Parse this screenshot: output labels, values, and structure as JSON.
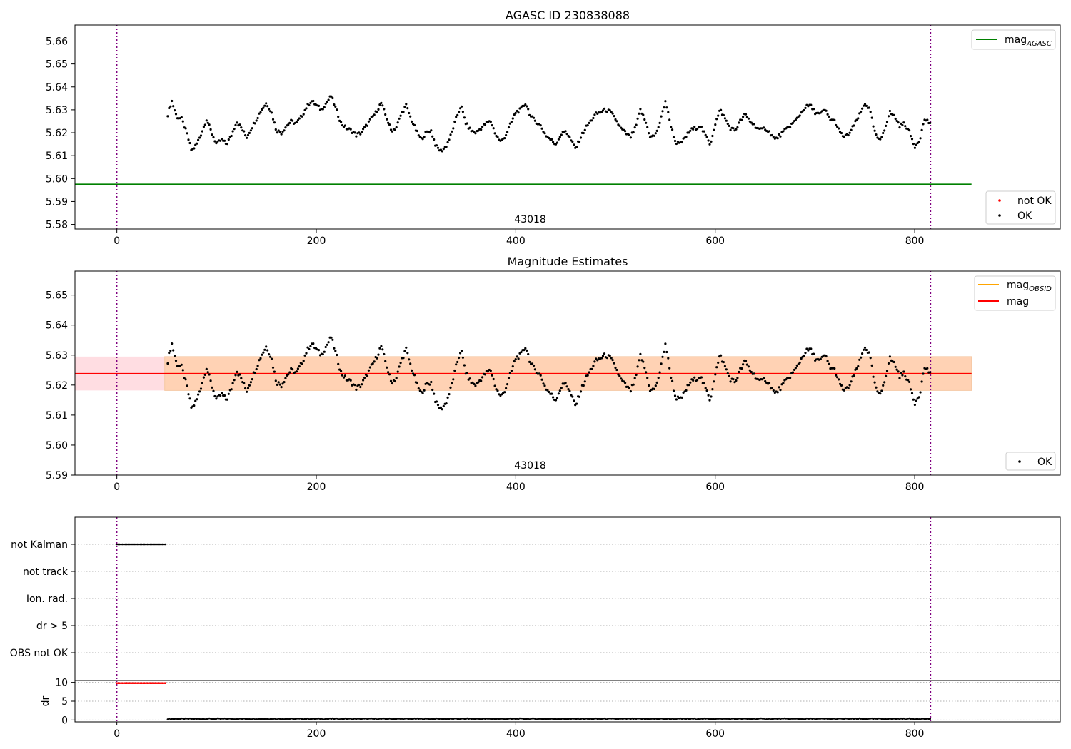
{
  "figure": {
    "panel1_title": "AGASC ID 230838088",
    "panel2_title": "Magnitude Estimates",
    "obsid_label": "43018"
  },
  "colors": {
    "ok": "#000000",
    "not_ok": "#ff0000",
    "mag_agasc": "#008000",
    "mag_obsid": "#ffa500",
    "mag": "#ff0000",
    "band_outer": "#ffdde2",
    "band_inner": "#ffd2b4",
    "obs_boundary": "#800080",
    "grid": "#b0b0b0"
  },
  "chart_data": [
    {
      "type": "scatter",
      "title": "AGASC ID 230838088",
      "xlabel": "",
      "ylabel": "",
      "xlim": [
        -42,
        946
      ],
      "ylim": [
        5.578,
        5.667
      ],
      "xticks": [
        0,
        200,
        400,
        600,
        800
      ],
      "yticks": [
        5.58,
        5.59,
        5.6,
        5.61,
        5.62,
        5.63,
        5.64,
        5.65,
        5.66
      ],
      "grid": false,
      "legends": [
        {
          "placement": "top-right",
          "entries": [
            {
              "label": "mag",
              "subscript": "AGASC",
              "kind": "line",
              "color": "#008000"
            }
          ]
        },
        {
          "placement": "bottom-right",
          "entries": [
            {
              "label": "not OK",
              "kind": "dot",
              "color": "#ff0000"
            },
            {
              "label": "OK",
              "kind": "dot",
              "color": "#000000"
            }
          ]
        }
      ],
      "lines": [
        {
          "name": "mag_AGASC",
          "y": 5.5975,
          "x": [
            -42,
            857
          ]
        }
      ],
      "obs_boundaries": [
        0,
        816
      ],
      "annotation": {
        "text": "43018",
        "x": 408
      },
      "series": [
        {
          "name": "OK",
          "x_start": 51,
          "x_end": 816,
          "step": 1.39,
          "anchors": [
            [
              51,
              5.628
            ],
            [
              55,
              5.634
            ],
            [
              60,
              5.627
            ],
            [
              65,
              5.626
            ],
            [
              70,
              5.62
            ],
            [
              75,
              5.612
            ],
            [
              80,
              5.615
            ],
            [
              85,
              5.62
            ],
            [
              90,
              5.626
            ],
            [
              95,
              5.62
            ],
            [
              100,
              5.615
            ],
            [
              105,
              5.617
            ],
            [
              110,
              5.615
            ],
            [
              115,
              5.619
            ],
            [
              120,
              5.625
            ],
            [
              125,
              5.622
            ],
            [
              130,
              5.618
            ],
            [
              135,
              5.622
            ],
            [
              140,
              5.626
            ],
            [
              145,
              5.63
            ],
            [
              150,
              5.633
            ],
            [
              155,
              5.629
            ],
            [
              160,
              5.621
            ],
            [
              165,
              5.62
            ],
            [
              170,
              5.623
            ],
            [
              175,
              5.625
            ],
            [
              180,
              5.624
            ],
            [
              185,
              5.627
            ],
            [
              190,
              5.631
            ],
            [
              195,
              5.634
            ],
            [
              200,
              5.632
            ],
            [
              205,
              5.63
            ],
            [
              210,
              5.633
            ],
            [
              215,
              5.636
            ],
            [
              220,
              5.63
            ],
            [
              225,
              5.624
            ],
            [
              230,
              5.622
            ],
            [
              235,
              5.621
            ],
            [
              240,
              5.619
            ],
            [
              245,
              5.62
            ],
            [
              250,
              5.623
            ],
            [
              255,
              5.626
            ],
            [
              260,
              5.629
            ],
            [
              265,
              5.633
            ],
            [
              270,
              5.627
            ],
            [
              275,
              5.621
            ],
            [
              280,
              5.622
            ],
            [
              285,
              5.628
            ],
            [
              290,
              5.632
            ],
            [
              295,
              5.626
            ],
            [
              300,
              5.621
            ],
            [
              305,
              5.617
            ],
            [
              310,
              5.62
            ],
            [
              315,
              5.621
            ],
            [
              320,
              5.614
            ],
            [
              325,
              5.612
            ],
            [
              330,
              5.614
            ],
            [
              335,
              5.619
            ],
            [
              340,
              5.626
            ],
            [
              345,
              5.632
            ],
            [
              350,
              5.624
            ],
            [
              355,
              5.621
            ],
            [
              360,
              5.62
            ],
            [
              365,
              5.622
            ],
            [
              370,
              5.624
            ],
            [
              375,
              5.625
            ],
            [
              380,
              5.619
            ],
            [
              385,
              5.616
            ],
            [
              390,
              5.619
            ],
            [
              395,
              5.624
            ],
            [
              400,
              5.629
            ],
            [
              405,
              5.63
            ],
            [
              410,
              5.633
            ],
            [
              415,
              5.627
            ],
            [
              420,
              5.625
            ],
            [
              425,
              5.623
            ],
            [
              430,
              5.619
            ],
            [
              435,
              5.617
            ],
            [
              440,
              5.615
            ],
            [
              445,
              5.619
            ],
            [
              450,
              5.621
            ],
            [
              455,
              5.617
            ],
            [
              460,
              5.613
            ],
            [
              465,
              5.618
            ],
            [
              470,
              5.622
            ],
            [
              475,
              5.625
            ],
            [
              480,
              5.628
            ],
            [
              485,
              5.629
            ],
            [
              490,
              5.63
            ],
            [
              495,
              5.629
            ],
            [
              500,
              5.626
            ],
            [
              505,
              5.622
            ],
            [
              510,
              5.62
            ],
            [
              515,
              5.618
            ],
            [
              520,
              5.622
            ],
            [
              525,
              5.63
            ],
            [
              530,
              5.625
            ],
            [
              535,
              5.618
            ],
            [
              540,
              5.619
            ],
            [
              545,
              5.625
            ],
            [
              550,
              5.634
            ],
            [
              555,
              5.624
            ],
            [
              560,
              5.616
            ],
            [
              565,
              5.615
            ],
            [
              570,
              5.618
            ],
            [
              575,
              5.621
            ],
            [
              580,
              5.622
            ],
            [
              585,
              5.623
            ],
            [
              590,
              5.619
            ],
            [
              595,
              5.615
            ],
            [
              600,
              5.624
            ],
            [
              605,
              5.63
            ],
            [
              610,
              5.626
            ],
            [
              615,
              5.622
            ],
            [
              620,
              5.621
            ],
            [
              625,
              5.625
            ],
            [
              630,
              5.628
            ],
            [
              635,
              5.625
            ],
            [
              640,
              5.623
            ],
            [
              645,
              5.621
            ],
            [
              650,
              5.622
            ],
            [
              655,
              5.62
            ],
            [
              660,
              5.617
            ],
            [
              665,
              5.619
            ],
            [
              670,
              5.621
            ],
            [
              675,
              5.623
            ],
            [
              680,
              5.625
            ],
            [
              685,
              5.628
            ],
            [
              690,
              5.631
            ],
            [
              695,
              5.632
            ],
            [
              700,
              5.629
            ],
            [
              705,
              5.628
            ],
            [
              710,
              5.63
            ],
            [
              715,
              5.626
            ],
            [
              720,
              5.625
            ],
            [
              725,
              5.62
            ],
            [
              730,
              5.618
            ],
            [
              735,
              5.62
            ],
            [
              740,
              5.624
            ],
            [
              745,
              5.628
            ],
            [
              750,
              5.633
            ],
            [
              755,
              5.63
            ],
            [
              760,
              5.62
            ],
            [
              765,
              5.616
            ],
            [
              770,
              5.622
            ],
            [
              775,
              5.629
            ],
            [
              780,
              5.627
            ],
            [
              785,
              5.623
            ],
            [
              790,
              5.624
            ],
            [
              795,
              5.62
            ],
            [
              800,
              5.614
            ],
            [
              805,
              5.617
            ],
            [
              810,
              5.626
            ],
            [
              816,
              5.624
            ]
          ]
        }
      ]
    },
    {
      "type": "scatter",
      "title": "Magnitude Estimates",
      "xlabel": "",
      "ylabel": "",
      "xlim": [
        -42,
        946
      ],
      "ylim": [
        5.59,
        5.658
      ],
      "xticks": [
        0,
        200,
        400,
        600,
        800
      ],
      "yticks": [
        5.59,
        5.6,
        5.61,
        5.62,
        5.63,
        5.64,
        5.65
      ],
      "grid": false,
      "legends": [
        {
          "placement": "top-right",
          "entries": [
            {
              "label": "mag",
              "subscript": "OBSID",
              "kind": "line",
              "color": "#ffa500"
            },
            {
              "label": "mag",
              "kind": "line",
              "color": "#ff0000"
            }
          ]
        },
        {
          "placement": "bottom-right",
          "entries": [
            {
              "label": "OK",
              "kind": "dot",
              "color": "#000000"
            }
          ]
        }
      ],
      "lines": [
        {
          "name": "mag",
          "y": 5.6238,
          "x": [
            -42,
            857
          ]
        },
        {
          "name": "mag_OBSID",
          "y": 5.6238,
          "x": [
            -42,
            857
          ]
        }
      ],
      "bands": [
        {
          "y": [
            5.6182,
            5.6295
          ],
          "x": [
            -42,
            857
          ]
        }
      ],
      "obs_boundaries": [
        0,
        816
      ],
      "annotation": {
        "text": "43018",
        "x": 408
      },
      "series": [
        {
          "name": "OK",
          "same_as": "panel1"
        }
      ]
    },
    {
      "type": "scatter",
      "title": "",
      "xlabel": "",
      "ylabel": "",
      "xlim": [
        -42,
        946
      ],
      "xticks": [
        0,
        200,
        400,
        600,
        800
      ],
      "categories": [
        "not Kalman",
        "not track",
        "Ion. rad.",
        "dr > 5",
        "OBS not OK"
      ],
      "grid": true,
      "obs_boundaries": [
        0,
        816
      ],
      "series": [
        {
          "name": "not Kalman",
          "x_start": 0,
          "x_end": 50,
          "step": 1.39
        }
      ]
    },
    {
      "type": "scatter",
      "title": "",
      "xlabel": "",
      "ylabel": "dr",
      "xlim": [
        -42,
        946
      ],
      "ylim": [
        -0.5,
        10.5
      ],
      "xticks": [
        0,
        200,
        400,
        600,
        800
      ],
      "yticks": [
        0,
        5,
        10
      ],
      "grid": true,
      "obs_boundaries": [
        0,
        816
      ],
      "series": [
        {
          "name": "not OK",
          "x_start": 0,
          "x_end": 50,
          "step": 1.39,
          "value": 9.8
        },
        {
          "name": "OK",
          "x_start": 51,
          "x_end": 816,
          "step": 1.39,
          "value": 0.3
        }
      ]
    }
  ]
}
